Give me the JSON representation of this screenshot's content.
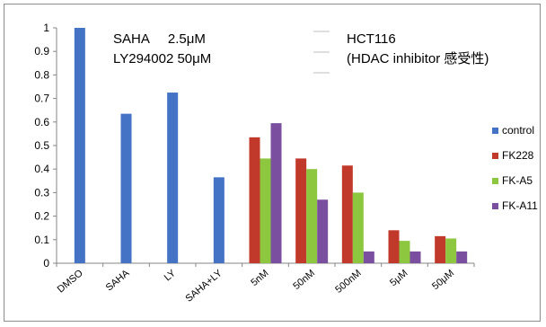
{
  "chart_data": {
    "type": "bar",
    "categories": [
      "DMSO",
      "SAHA",
      "LY",
      "SAHA+LY",
      "5nM",
      "50nM",
      "500nM",
      "5μM",
      "50μM"
    ],
    "series": [
      {
        "name": "control",
        "color": "#4472C4",
        "values": [
          1.0,
          0.635,
          0.725,
          0.365,
          null,
          null,
          null,
          null,
          null
        ]
      },
      {
        "name": "FK228",
        "color": "#C0392B",
        "values": [
          null,
          null,
          null,
          null,
          0.535,
          0.445,
          0.415,
          0.14,
          0.115
        ]
      },
      {
        "name": "FK-A5",
        "color": "#8DC63F",
        "values": [
          null,
          null,
          null,
          null,
          0.445,
          0.4,
          0.3,
          0.095,
          0.105
        ]
      },
      {
        "name": "FK-A11",
        "color": "#7B4FA0",
        "values": [
          null,
          null,
          null,
          null,
          0.595,
          0.27,
          0.05,
          0.05,
          0.05
        ]
      }
    ],
    "ylim": [
      0,
      1
    ],
    "yticks": [
      "0",
      "0.1",
      "0.2",
      "0.3",
      "0.4",
      "0.5",
      "0.6",
      "0.7",
      "0.8",
      "0.9",
      "1"
    ],
    "legend_position": "right",
    "grid": false
  },
  "annotations": {
    "treatment_line1": "SAHA     2.5μM",
    "treatment_line2": "LY294002 50μM",
    "cell_line1": "HCT116",
    "cell_line2": "(HDAC inhibitor 感受性)"
  }
}
